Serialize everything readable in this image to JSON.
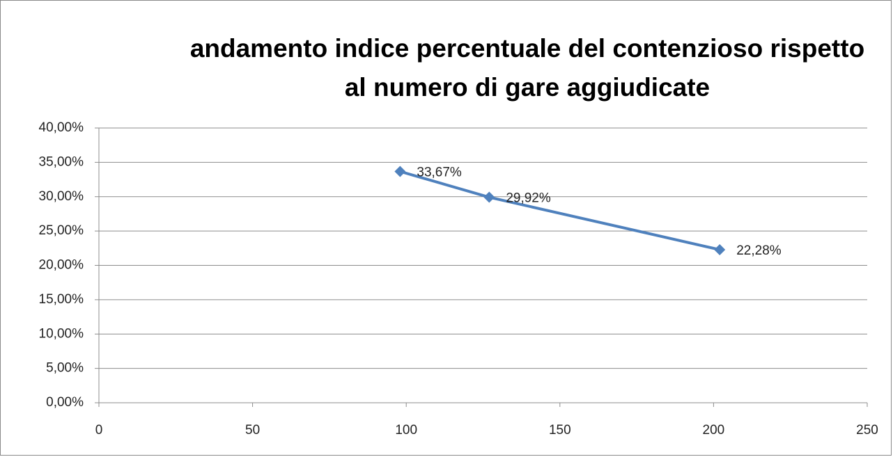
{
  "chart_data": {
    "type": "line",
    "title": "andamento indice percentuale del contenzioso rispetto al numero di gare aggiudicate",
    "x": [
      98,
      127,
      202
    ],
    "series": [
      {
        "color": "#4f81bd",
        "values": [
          33.67,
          29.92,
          22.28
        ],
        "value_labels": [
          "33,67%",
          "29,92%",
          "22,28%"
        ]
      }
    ],
    "xlim": [
      0,
      250
    ],
    "xticks": [
      0,
      50,
      100,
      150,
      200,
      250
    ],
    "ylim": [
      0,
      40
    ],
    "yticks": [
      {
        "value": 0,
        "label": "0,00%"
      },
      {
        "value": 5,
        "label": "5,00%"
      },
      {
        "value": 10,
        "label": "10,00%"
      },
      {
        "value": 15,
        "label": "15,00%"
      },
      {
        "value": 20,
        "label": "20,00%"
      },
      {
        "value": 25,
        "label": "25,00%"
      },
      {
        "value": 30,
        "label": "30,00%"
      },
      {
        "value": 35,
        "label": "35,00%"
      },
      {
        "value": 40,
        "label": "40,00%"
      }
    ],
    "grid": true
  }
}
